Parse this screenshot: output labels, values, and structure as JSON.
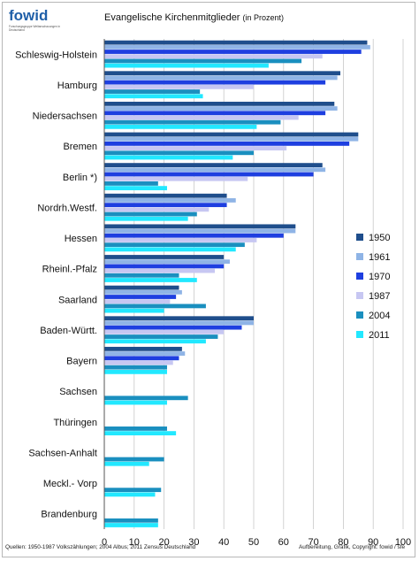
{
  "logo": {
    "text": "fowid",
    "tagline": "Forschungsgruppe Weltanschauungen in Deutschland"
  },
  "chart_data": {
    "type": "bar",
    "orientation": "horizontal",
    "title": "Evangelische Kirchenmitglieder",
    "subtitle": "(in Prozent)",
    "xlabel": "",
    "ylabel": "",
    "xlim": [
      0,
      100
    ],
    "xticks": [
      0,
      10,
      20,
      30,
      40,
      50,
      60,
      70,
      80,
      90,
      100
    ],
    "grid": "vertical",
    "legend_position": "right",
    "categories": [
      "Schleswig-Holstein",
      "Hamburg",
      "Niedersachsen",
      "Bremen",
      "Berlin *)",
      "Nordrh.Westf.",
      "Hessen",
      "Rheinl.-Pfalz",
      "Saarland",
      "Baden-Württ.",
      "Bayern",
      "Sachsen",
      "Thüringen",
      "Sachsen-Anhalt",
      "Meckl.- Vorp",
      "Brandenburg"
    ],
    "series": [
      {
        "name": "1950",
        "color": "#1f4e8c",
        "values": [
          88,
          79,
          77,
          85,
          73,
          41,
          64,
          40,
          25,
          50,
          26,
          null,
          null,
          null,
          null,
          null
        ]
      },
      {
        "name": "1961",
        "color": "#8fb4e6",
        "values": [
          89,
          78,
          78,
          85,
          74,
          44,
          64,
          42,
          26,
          50,
          27,
          null,
          null,
          null,
          null,
          null
        ]
      },
      {
        "name": "1970",
        "color": "#1e3fe0",
        "values": [
          86,
          74,
          74,
          82,
          70,
          41,
          60,
          40,
          24,
          46,
          25,
          null,
          null,
          null,
          null,
          null
        ]
      },
      {
        "name": "1987",
        "color": "#c7c7f2",
        "values": [
          73,
          50,
          65,
          61,
          48,
          35,
          51,
          37,
          22,
          40,
          23,
          null,
          null,
          null,
          null,
          null
        ]
      },
      {
        "name": "2004",
        "color": "#1a8fbf",
        "values": [
          66,
          32,
          59,
          50,
          18,
          31,
          47,
          25,
          34,
          38,
          21,
          28,
          21,
          20,
          19,
          18
        ]
      },
      {
        "name": "2011",
        "color": "#22e8ff",
        "values": [
          55,
          33,
          51,
          43,
          21,
          28,
          44,
          31,
          20,
          34,
          21,
          21,
          24,
          15,
          17,
          18
        ]
      }
    ]
  },
  "footer": {
    "sources": "Quellen: 1950-1987 Volkszählungen; 2004 Albus; 2011 Zensus Deutschland",
    "credit": "Aufbereitung, Grafik, Copyright: fowid / sfe"
  }
}
